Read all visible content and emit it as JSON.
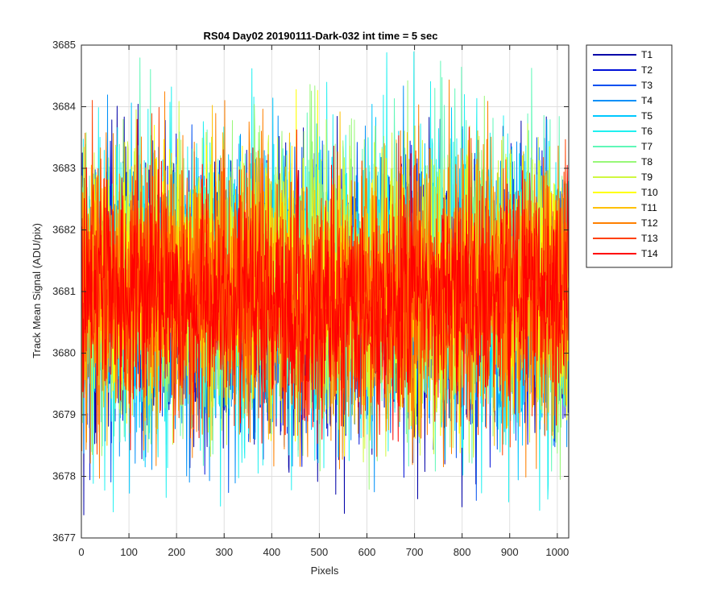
{
  "chart_data": {
    "type": "line",
    "title": "RS04 Day02 20190111-Dark-032 int time = 5 sec",
    "xlabel": "Pixels",
    "ylabel": "Track Mean Signal (ADU/pix)",
    "xlim": [
      0,
      1024
    ],
    "ylim": [
      3677,
      3685
    ],
    "xticks": [
      0,
      100,
      200,
      300,
      400,
      500,
      600,
      700,
      800,
      900,
      1000
    ],
    "yticks": [
      3677,
      3678,
      3679,
      3680,
      3681,
      3682,
      3683,
      3684,
      3685
    ],
    "grid": true,
    "legend_position": "outside-top-right",
    "n_points_per_series": 1024,
    "series": [
      {
        "name": "T1",
        "color": "#0000a8",
        "mean": 3680.8,
        "min": 3677.2,
        "max": 3684.1
      },
      {
        "name": "T2",
        "color": "#0010d8",
        "mean": 3680.9,
        "min": 3677.4,
        "max": 3683.9
      },
      {
        "name": "T3",
        "color": "#0050f0",
        "mean": 3680.9,
        "min": 3677.5,
        "max": 3683.8
      },
      {
        "name": "T4",
        "color": "#0090f8",
        "mean": 3681.0,
        "min": 3677.7,
        "max": 3684.4
      },
      {
        "name": "T5",
        "color": "#00c8ff",
        "mean": 3681.0,
        "min": 3677.7,
        "max": 3684.3
      },
      {
        "name": "T6",
        "color": "#20f0f0",
        "mean": 3681.0,
        "min": 3677.2,
        "max": 3684.9
      },
      {
        "name": "T7",
        "color": "#60f8b8",
        "mean": 3681.1,
        "min": 3678.0,
        "max": 3685.0
      },
      {
        "name": "T8",
        "color": "#98f878",
        "mean": 3681.1,
        "min": 3677.4,
        "max": 3684.5
      },
      {
        "name": "T9",
        "color": "#d0f840",
        "mean": 3681.1,
        "min": 3678.1,
        "max": 3684.5
      },
      {
        "name": "T10",
        "color": "#ffff00",
        "mean": 3681.1,
        "min": 3678.3,
        "max": 3684.5
      },
      {
        "name": "T11",
        "color": "#ffc000",
        "mean": 3681.0,
        "min": 3678.4,
        "max": 3684.3
      },
      {
        "name": "T12",
        "color": "#ff8000",
        "mean": 3681.0,
        "min": 3677.8,
        "max": 3684.6
      },
      {
        "name": "T13",
        "color": "#ff4000",
        "mean": 3681.0,
        "min": 3678.3,
        "max": 3684.3
      },
      {
        "name": "T14",
        "color": "#ff0000",
        "mean": 3680.9,
        "min": 3678.4,
        "max": 3684.1
      }
    ]
  }
}
